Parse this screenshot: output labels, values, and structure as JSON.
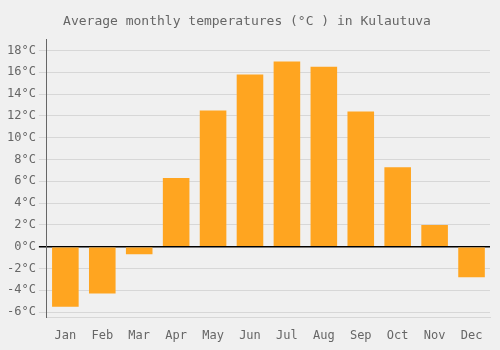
{
  "chart_data": {
    "type": "bar",
    "title": "Average monthly temperatures (°C ) in Kulautuva",
    "categories": [
      "Jan",
      "Feb",
      "Mar",
      "Apr",
      "May",
      "Jun",
      "Jul",
      "Aug",
      "Sep",
      "Oct",
      "Nov",
      "Dec"
    ],
    "values": [
      -5.5,
      -4.3,
      -0.7,
      6.3,
      12.5,
      15.8,
      17.0,
      16.5,
      12.4,
      7.3,
      2.0,
      -2.8
    ],
    "color": "#FFA520",
    "ylim": [
      -6.5,
      19
    ],
    "yticks": [
      {
        "value": -6,
        "label": "-6°C"
      },
      {
        "value": -4,
        "label": "-4°C"
      },
      {
        "value": -2,
        "label": "-2°C"
      },
      {
        "value": 0,
        "label": "0°C"
      },
      {
        "value": 2,
        "label": "2°C"
      },
      {
        "value": 4,
        "label": "4°C"
      },
      {
        "value": 6,
        "label": "6°C"
      },
      {
        "value": 8,
        "label": "8°C"
      },
      {
        "value": 10,
        "label": "10°C"
      },
      {
        "value": 12,
        "label": "12°C"
      },
      {
        "value": 14,
        "label": "14°C"
      },
      {
        "value": 16,
        "label": "16°C"
      },
      {
        "value": 18,
        "label": "18°C"
      }
    ],
    "grid": true
  }
}
